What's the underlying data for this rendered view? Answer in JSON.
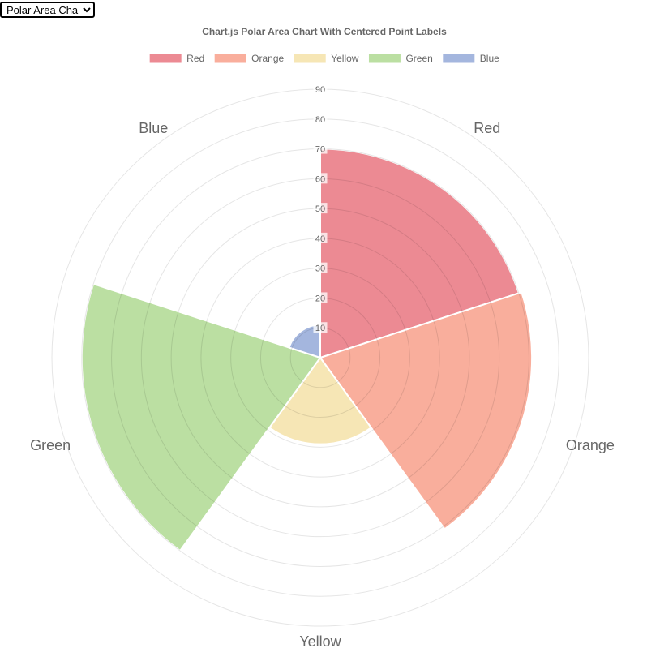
{
  "controls": {
    "chart_type_select": {
      "selected": "Polar Area Chart"
    }
  },
  "chart_data": {
    "type": "polarArea",
    "title": "Chart.js Polar Area Chart With Centered Point Labels",
    "labels": [
      "Red",
      "Orange",
      "Yellow",
      "Green",
      "Blue"
    ],
    "values": [
      70,
      71,
      29,
      80,
      11
    ],
    "colors": {
      "Red": "#ec8a93",
      "Orange": "#f9ae9c",
      "Yellow": "#f6e6b5",
      "Green": "#bbdfa2",
      "Blue": "#a4b6de"
    },
    "rlim": [
      0,
      90
    ],
    "ticks": [
      10,
      20,
      30,
      40,
      50,
      60,
      70,
      80,
      90
    ],
    "grid": true,
    "legend_position": "top",
    "point_labels_centered": true
  }
}
